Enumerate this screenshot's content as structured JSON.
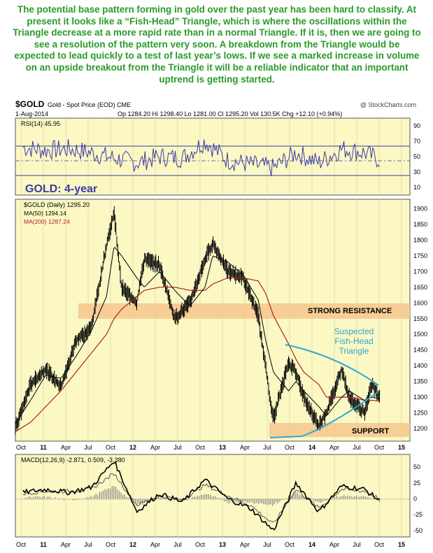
{
  "intro_text": "The potential base pattern forming in gold over the past year has been hard to classify. At present it looks like a “Fish-Head” Triangle, which is where the oscillations within the Triangle decrease at a more rapid rate than in a normal Triangle. If it is, then we are going to see a resolution of the pattern very soon. A breakdown from the Triangle would be expected to lead quickly to a test of last year’s lows. If we see a marked increase in volume on an upside breakout from the Triangle it will be a reliable indicator that an important uptrend is getting started.",
  "header": {
    "symbol": "$GOLD",
    "name": "Gold - Spot Price (EOD)",
    "exchange": "CME",
    "watermark": "@ StockCharts.com",
    "date": "1-Aug-2014",
    "ohlc": "Op 1284.20  Hi 1298.40  Lo 1281.00  Cl 1295.20  Vol 130.5K  Chg +12.10 (+0.94%)"
  },
  "colors": {
    "panel_bg": "#fbf8c4",
    "price": "#000000",
    "ma50": "#000000",
    "ma200": "#b22222",
    "rsi": "#3b3baa",
    "zone": "#f5c78e",
    "triangle": "#2aa7d8",
    "label_blue": "#3a3aa8",
    "intro_green": "#2a9a2a"
  },
  "annotations": {
    "chart_title": "GOLD: 4-year",
    "resistance": "STRONG RESISTANCE",
    "support": "SUPPORT",
    "triangle": [
      "Suspected",
      "Fish-Head",
      "Triangle"
    ]
  },
  "x_ticks": [
    "Oct",
    "11",
    "Apr",
    "Jul",
    "Oct",
    "12",
    "Apr",
    "Jul",
    "Oct",
    "13",
    "Apr",
    "Jul",
    "Oct",
    "14",
    "Apr",
    "Jul",
    "Oct",
    "15"
  ],
  "chart_data": [
    {
      "type": "line",
      "panel": "rsi",
      "legend": "RSI(14) 45.95",
      "y_ticks": [
        90,
        70,
        50,
        30,
        10
      ],
      "ylim": [
        0,
        100
      ],
      "x": [
        "2010-09",
        "2010-12",
        "2011-03",
        "2011-06",
        "2011-09",
        "2011-12",
        "2012-03",
        "2012-06",
        "2012-09",
        "2012-12",
        "2013-03",
        "2013-06",
        "2013-09",
        "2013-12",
        "2014-03",
        "2014-06",
        "2014-08"
      ],
      "series": [
        {
          "name": "RSI(14)",
          "values": [
            62,
            58,
            60,
            55,
            48,
            42,
            50,
            48,
            70,
            45,
            40,
            35,
            55,
            42,
            60,
            55,
            45.95
          ]
        }
      ]
    },
    {
      "type": "line",
      "panel": "price",
      "legend": [
        "$GOLD (Daily) 1295.20",
        "MA(50) 1294.14",
        "MA(200) 1287.24"
      ],
      "y_ticks": [
        1900,
        1850,
        1800,
        1750,
        1700,
        1650,
        1600,
        1550,
        1500,
        1450,
        1400,
        1350,
        1300,
        1250,
        1200
      ],
      "ylim": [
        1160,
        1930
      ],
      "x": [
        "2010-08",
        "2010-10",
        "2010-12",
        "2011-02",
        "2011-04",
        "2011-06",
        "2011-08",
        "2011-09",
        "2011-10",
        "2011-12",
        "2012-01",
        "2012-03",
        "2012-05",
        "2012-07",
        "2012-09",
        "2012-10",
        "2012-12",
        "2013-02",
        "2013-04",
        "2013-05",
        "2013-06",
        "2013-08",
        "2013-09",
        "2013-10",
        "2013-12",
        "2014-01",
        "2014-03",
        "2014-04",
        "2014-06",
        "2014-07",
        "2014-08"
      ],
      "series": [
        {
          "name": "$GOLD (Daily)",
          "values": [
            1200,
            1340,
            1390,
            1330,
            1480,
            1520,
            1780,
            1890,
            1650,
            1600,
            1740,
            1720,
            1550,
            1600,
            1740,
            1790,
            1700,
            1680,
            1560,
            1390,
            1230,
            1410,
            1380,
            1300,
            1210,
            1250,
            1390,
            1300,
            1250,
            1340,
            1295.2
          ]
        },
        {
          "name": "MA(50)",
          "values": [
            1215,
            1290,
            1370,
            1360,
            1430,
            1510,
            1620,
            1780,
            1750,
            1680,
            1650,
            1700,
            1640,
            1590,
            1650,
            1750,
            1730,
            1690,
            1610,
            1480,
            1380,
            1320,
            1350,
            1320,
            1270,
            1240,
            1300,
            1320,
            1290,
            1300,
            1294.14
          ]
        },
        {
          "name": "MA(200)",
          "values": [
            1190,
            1220,
            1270,
            1320,
            1380,
            1440,
            1500,
            1550,
            1580,
            1620,
            1640,
            1650,
            1650,
            1640,
            1640,
            1660,
            1680,
            1680,
            1670,
            1630,
            1560,
            1470,
            1420,
            1380,
            1340,
            1300,
            1300,
            1300,
            1290,
            1290,
            1287.24
          ]
        }
      ],
      "zones": [
        {
          "label": "STRONG RESISTANCE",
          "from": 1520,
          "to": 1570
        },
        {
          "label": "SUPPORT",
          "from": 1180,
          "to": 1220
        }
      ]
    },
    {
      "type": "line",
      "panel": "macd",
      "legend": "MACD(12,26,9) -2.871, 0.509, -3.380",
      "y_ticks": [
        50,
        25,
        0,
        -25,
        -50
      ],
      "ylim": [
        -60,
        70
      ],
      "x": [
        "2010-09",
        "2010-12",
        "2011-03",
        "2011-06",
        "2011-09",
        "2011-12",
        "2012-03",
        "2012-06",
        "2012-09",
        "2012-12",
        "2013-03",
        "2013-06",
        "2013-09",
        "2013-12",
        "2014-03",
        "2014-06",
        "2014-08"
      ],
      "series": [
        {
          "name": "MACD",
          "values": [
            10,
            15,
            10,
            18,
            60,
            -20,
            8,
            -5,
            30,
            0,
            -15,
            -50,
            25,
            -20,
            20,
            15,
            -2.871
          ]
        },
        {
          "name": "Signal",
          "values": [
            8,
            12,
            12,
            15,
            40,
            -10,
            5,
            -2,
            22,
            5,
            -10,
            -40,
            15,
            -15,
            15,
            12,
            0.509
          ]
        },
        {
          "name": "Histogram",
          "values": [
            2,
            3,
            -2,
            3,
            20,
            -10,
            3,
            -3,
            8,
            -5,
            -5,
            -10,
            10,
            -5,
            5,
            3,
            -3.38
          ]
        }
      ]
    }
  ]
}
